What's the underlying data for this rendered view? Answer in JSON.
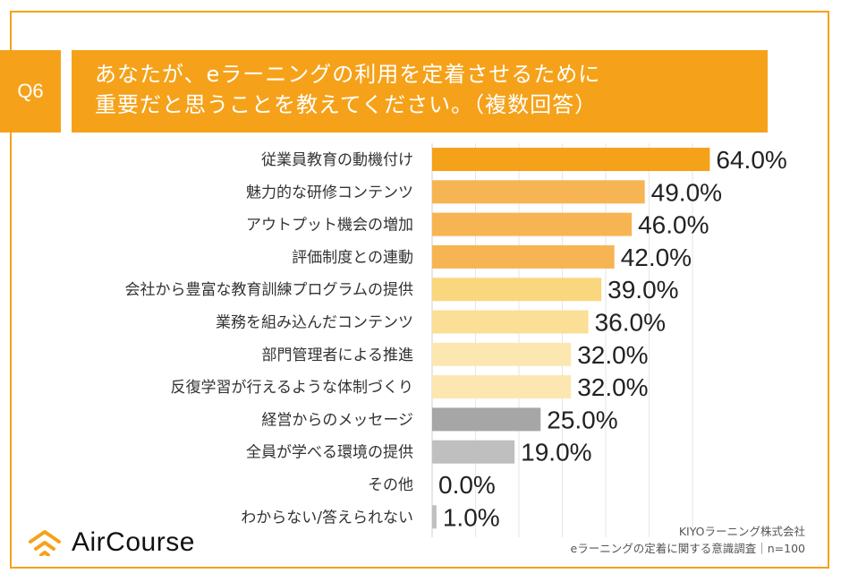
{
  "header": {
    "q_label": "Q6",
    "title_line1": "あなたが、eラーニングの利用を定着させるために",
    "title_line2": "重要だと思うことを教えてください。（複数回答）"
  },
  "chart_data": {
    "type": "bar",
    "orientation": "horizontal",
    "categories": [
      "従業員教育の動機付け",
      "魅力的な研修コンテンツ",
      "アウトプット機会の増加",
      "評価制度との連動",
      "会社から豊富な教育訓練プログラムの提供",
      "業務を組み込んだコンテンツ",
      "部門管理者による推進",
      "反復学習が行えるような体制づくり",
      "経営からのメッセージ",
      "全員が学べる環境の提供",
      "その他",
      "わからない/答えられない"
    ],
    "values": [
      64.0,
      49.0,
      46.0,
      42.0,
      39.0,
      36.0,
      32.0,
      32.0,
      25.0,
      19.0,
      0.0,
      1.0
    ],
    "labels": [
      "64.0%",
      "49.0%",
      "46.0%",
      "42.0%",
      "39.0%",
      "36.0%",
      "32.0%",
      "32.0%",
      "25.0%",
      "19.0%",
      "0.0%",
      "1.0%"
    ],
    "colors": [
      "#f5a21a",
      "#f7b452",
      "#f7b452",
      "#f7b452",
      "#fad77e",
      "#fbdf96",
      "#fce7b0",
      "#fce7b0",
      "#a6a6a6",
      "#bfbfbf",
      "#bfbfbf",
      "#bfbfbf"
    ],
    "xlim": [
      0,
      100
    ],
    "unit": "%"
  },
  "branding": {
    "logo_text": "AirCourse",
    "accent_color": "#f5a21a"
  },
  "source": {
    "line1": "KIYOラーニング株式会社",
    "line2": "eラーニングの定着に関する意識調査｜n=100"
  }
}
